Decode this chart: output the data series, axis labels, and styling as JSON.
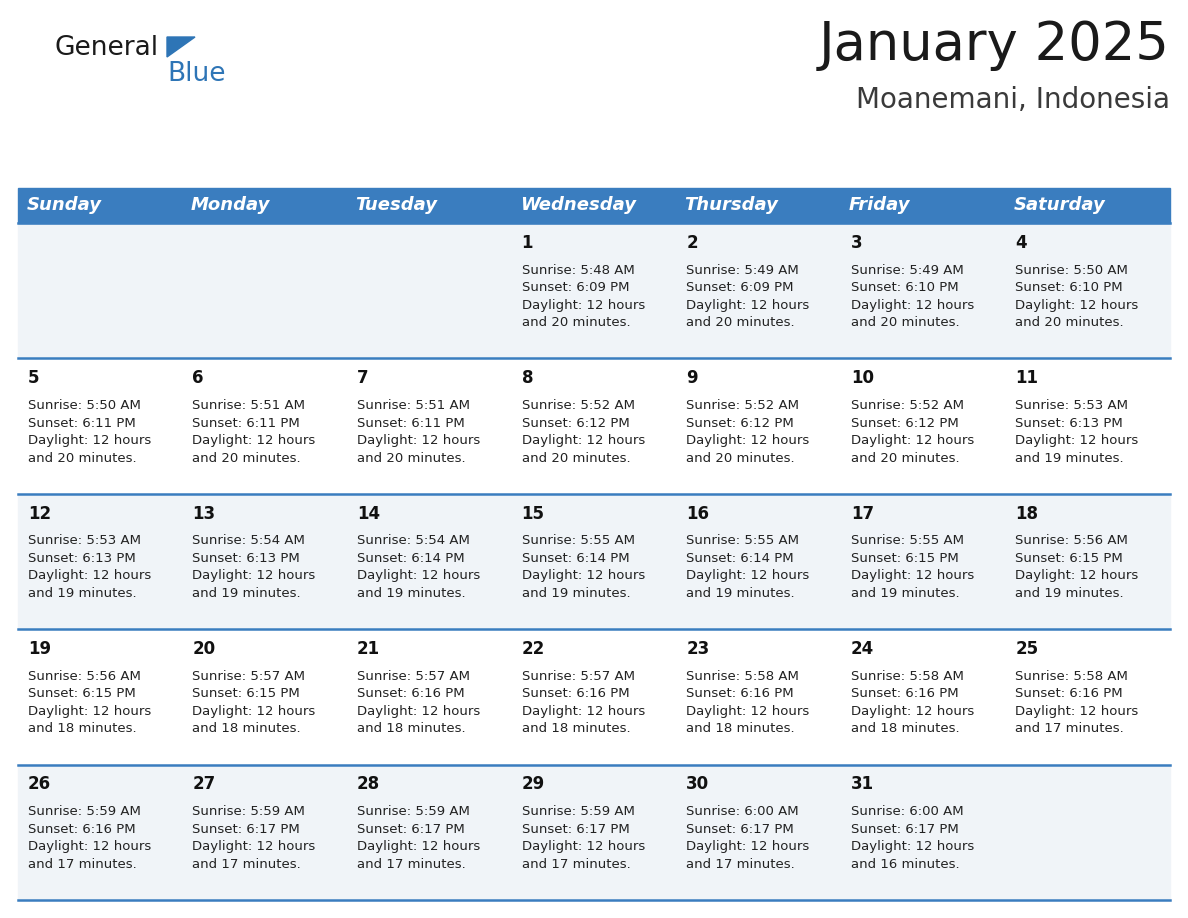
{
  "title": "January 2025",
  "subtitle": "Moanemani, Indonesia",
  "header_bg_color": "#3a7dbf",
  "header_text_color": "#ffffff",
  "row_bg_color_odd": "#f0f4f8",
  "row_bg_color_even": "#ffffff",
  "row_line_color": "#3a7dbf",
  "day_names": [
    "Sunday",
    "Monday",
    "Tuesday",
    "Wednesday",
    "Thursday",
    "Friday",
    "Saturday"
  ],
  "days": [
    {
      "day": 1,
      "col": 3,
      "row": 0,
      "sunrise": "5:48 AM",
      "sunset": "6:09 PM",
      "daylight_hours": 12,
      "daylight_minutes": 20
    },
    {
      "day": 2,
      "col": 4,
      "row": 0,
      "sunrise": "5:49 AM",
      "sunset": "6:09 PM",
      "daylight_hours": 12,
      "daylight_minutes": 20
    },
    {
      "day": 3,
      "col": 5,
      "row": 0,
      "sunrise": "5:49 AM",
      "sunset": "6:10 PM",
      "daylight_hours": 12,
      "daylight_minutes": 20
    },
    {
      "day": 4,
      "col": 6,
      "row": 0,
      "sunrise": "5:50 AM",
      "sunset": "6:10 PM",
      "daylight_hours": 12,
      "daylight_minutes": 20
    },
    {
      "day": 5,
      "col": 0,
      "row": 1,
      "sunrise": "5:50 AM",
      "sunset": "6:11 PM",
      "daylight_hours": 12,
      "daylight_minutes": 20
    },
    {
      "day": 6,
      "col": 1,
      "row": 1,
      "sunrise": "5:51 AM",
      "sunset": "6:11 PM",
      "daylight_hours": 12,
      "daylight_minutes": 20
    },
    {
      "day": 7,
      "col": 2,
      "row": 1,
      "sunrise": "5:51 AM",
      "sunset": "6:11 PM",
      "daylight_hours": 12,
      "daylight_minutes": 20
    },
    {
      "day": 8,
      "col": 3,
      "row": 1,
      "sunrise": "5:52 AM",
      "sunset": "6:12 PM",
      "daylight_hours": 12,
      "daylight_minutes": 20
    },
    {
      "day": 9,
      "col": 4,
      "row": 1,
      "sunrise": "5:52 AM",
      "sunset": "6:12 PM",
      "daylight_hours": 12,
      "daylight_minutes": 20
    },
    {
      "day": 10,
      "col": 5,
      "row": 1,
      "sunrise": "5:52 AM",
      "sunset": "6:12 PM",
      "daylight_hours": 12,
      "daylight_minutes": 20
    },
    {
      "day": 11,
      "col": 6,
      "row": 1,
      "sunrise": "5:53 AM",
      "sunset": "6:13 PM",
      "daylight_hours": 12,
      "daylight_minutes": 19
    },
    {
      "day": 12,
      "col": 0,
      "row": 2,
      "sunrise": "5:53 AM",
      "sunset": "6:13 PM",
      "daylight_hours": 12,
      "daylight_minutes": 19
    },
    {
      "day": 13,
      "col": 1,
      "row": 2,
      "sunrise": "5:54 AM",
      "sunset": "6:13 PM",
      "daylight_hours": 12,
      "daylight_minutes": 19
    },
    {
      "day": 14,
      "col": 2,
      "row": 2,
      "sunrise": "5:54 AM",
      "sunset": "6:14 PM",
      "daylight_hours": 12,
      "daylight_minutes": 19
    },
    {
      "day": 15,
      "col": 3,
      "row": 2,
      "sunrise": "5:55 AM",
      "sunset": "6:14 PM",
      "daylight_hours": 12,
      "daylight_minutes": 19
    },
    {
      "day": 16,
      "col": 4,
      "row": 2,
      "sunrise": "5:55 AM",
      "sunset": "6:14 PM",
      "daylight_hours": 12,
      "daylight_minutes": 19
    },
    {
      "day": 17,
      "col": 5,
      "row": 2,
      "sunrise": "5:55 AM",
      "sunset": "6:15 PM",
      "daylight_hours": 12,
      "daylight_minutes": 19
    },
    {
      "day": 18,
      "col": 6,
      "row": 2,
      "sunrise": "5:56 AM",
      "sunset": "6:15 PM",
      "daylight_hours": 12,
      "daylight_minutes": 19
    },
    {
      "day": 19,
      "col": 0,
      "row": 3,
      "sunrise": "5:56 AM",
      "sunset": "6:15 PM",
      "daylight_hours": 12,
      "daylight_minutes": 18
    },
    {
      "day": 20,
      "col": 1,
      "row": 3,
      "sunrise": "5:57 AM",
      "sunset": "6:15 PM",
      "daylight_hours": 12,
      "daylight_minutes": 18
    },
    {
      "day": 21,
      "col": 2,
      "row": 3,
      "sunrise": "5:57 AM",
      "sunset": "6:16 PM",
      "daylight_hours": 12,
      "daylight_minutes": 18
    },
    {
      "day": 22,
      "col": 3,
      "row": 3,
      "sunrise": "5:57 AM",
      "sunset": "6:16 PM",
      "daylight_hours": 12,
      "daylight_minutes": 18
    },
    {
      "day": 23,
      "col": 4,
      "row": 3,
      "sunrise": "5:58 AM",
      "sunset": "6:16 PM",
      "daylight_hours": 12,
      "daylight_minutes": 18
    },
    {
      "day": 24,
      "col": 5,
      "row": 3,
      "sunrise": "5:58 AM",
      "sunset": "6:16 PM",
      "daylight_hours": 12,
      "daylight_minutes": 18
    },
    {
      "day": 25,
      "col": 6,
      "row": 3,
      "sunrise": "5:58 AM",
      "sunset": "6:16 PM",
      "daylight_hours": 12,
      "daylight_minutes": 17
    },
    {
      "day": 26,
      "col": 0,
      "row": 4,
      "sunrise": "5:59 AM",
      "sunset": "6:16 PM",
      "daylight_hours": 12,
      "daylight_minutes": 17
    },
    {
      "day": 27,
      "col": 1,
      "row": 4,
      "sunrise": "5:59 AM",
      "sunset": "6:17 PM",
      "daylight_hours": 12,
      "daylight_minutes": 17
    },
    {
      "day": 28,
      "col": 2,
      "row": 4,
      "sunrise": "5:59 AM",
      "sunset": "6:17 PM",
      "daylight_hours": 12,
      "daylight_minutes": 17
    },
    {
      "day": 29,
      "col": 3,
      "row": 4,
      "sunrise": "5:59 AM",
      "sunset": "6:17 PM",
      "daylight_hours": 12,
      "daylight_minutes": 17
    },
    {
      "day": 30,
      "col": 4,
      "row": 4,
      "sunrise": "6:00 AM",
      "sunset": "6:17 PM",
      "daylight_hours": 12,
      "daylight_minutes": 17
    },
    {
      "day": 31,
      "col": 5,
      "row": 4,
      "sunrise": "6:00 AM",
      "sunset": "6:17 PM",
      "daylight_hours": 12,
      "daylight_minutes": 16
    }
  ],
  "num_rows": 5,
  "num_cols": 7,
  "logo_text_general": "General",
  "logo_text_blue": "Blue",
  "logo_triangle_color": "#2e75b6",
  "title_fontsize": 38,
  "subtitle_fontsize": 20,
  "header_fontsize": 13,
  "day_num_fontsize": 12,
  "cell_text_fontsize": 9.5
}
